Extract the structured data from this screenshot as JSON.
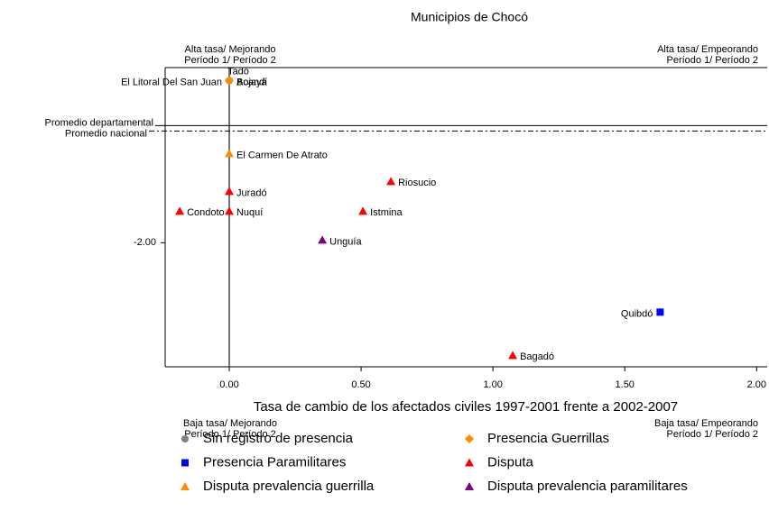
{
  "chart_data": {
    "type": "scatter",
    "title": "Municipios de Chocó",
    "x_label": "Tasa de cambio de los afectados civiles 1997-2001 frente a 2002-2007",
    "xlim": [
      -0.243,
      2.04
    ],
    "ylim": [
      -3.53,
      0.16
    ],
    "xticks": [
      {
        "value": 0,
        "label": "0.00"
      },
      {
        "value": 0.5,
        "label": "0.50"
      },
      {
        "value": 1,
        "label": "1.00"
      },
      {
        "value": 1.5,
        "label": "1.50"
      },
      {
        "value": 2,
        "label": "2.00"
      }
    ],
    "yticks": [
      {
        "value": -2,
        "label": "-2.00"
      }
    ],
    "reference_lines": [
      {
        "label": "Promedio departamental",
        "value": -0.556,
        "style": "solid"
      },
      {
        "label": "Promedio nacional",
        "value": -0.622,
        "style": "dashdot"
      }
    ],
    "annotations": {
      "top_left": [
        "Alta tasa/ Mejorando",
        "Período 1/ Período 2"
      ],
      "top_right": [
        "Alta tasa/ Empeorando",
        "Período 1/ Período 2"
      ],
      "bottom_left": [
        "Baja tasa/ Mejorando",
        "Período 1/ Período 2"
      ],
      "bottom_right": [
        "Baja tasa/ Empeorando",
        "Período 1/ Período 2"
      ]
    },
    "series": [
      {
        "name": "Sin registro de presencia",
        "color": "#808080",
        "marker": "circle",
        "x": [
          0,
          0,
          0
        ],
        "values": [
          0,
          0,
          0
        ],
        "labels": [
          "El Litoral Del San Juan",
          "Bojayá",
          "Acandí"
        ]
      },
      {
        "name": "Presencia Guerrillas",
        "color": "#ff8c00",
        "marker": "diamond",
        "x": [
          0
        ],
        "values": [
          0
        ],
        "labels": [
          "Tadó"
        ]
      },
      {
        "name": "Presencia Paramilitares",
        "color": "#0000ff",
        "marker": "square",
        "x": [
          1.634
        ],
        "values": [
          -2.856
        ],
        "labels": [
          "Quibdó"
        ]
      },
      {
        "name": "Disputa",
        "color": "#ff0000",
        "marker": "triangle",
        "x": [
          0.613,
          0,
          -0.188,
          0,
          0.507,
          1.075
        ],
        "values": [
          -1.244,
          -1.367,
          -1.611,
          -1.611,
          -1.611,
          -3.389
        ],
        "labels": [
          "Riosucio",
          "Juradó",
          "Condoto",
          "Nuquí",
          "Istmina",
          "Bagadó"
        ]
      },
      {
        "name": "Disputa prevalencia guerrilla",
        "color": "#ff8c00",
        "marker": "triangle",
        "x": [
          0
        ],
        "values": [
          -0.9
        ],
        "labels": [
          "El Carmen De Atrato"
        ]
      },
      {
        "name": "Disputa prevalencia paramilitares",
        "color": "#800080",
        "marker": "triangle",
        "x": [
          0.353
        ],
        "values": [
          -1.967
        ],
        "labels": [
          "Unguía"
        ]
      }
    ]
  }
}
